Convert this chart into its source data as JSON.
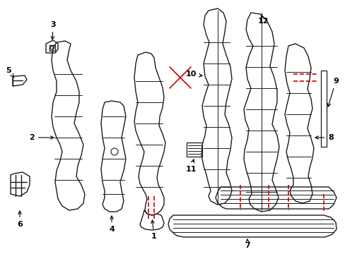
{
  "bg_color": "#ffffff",
  "line_color": "#1a1a1a",
  "red_color": "#cc0000",
  "label_color": "#000000",
  "figsize": [
    4.89,
    3.6
  ],
  "dpi": 100
}
